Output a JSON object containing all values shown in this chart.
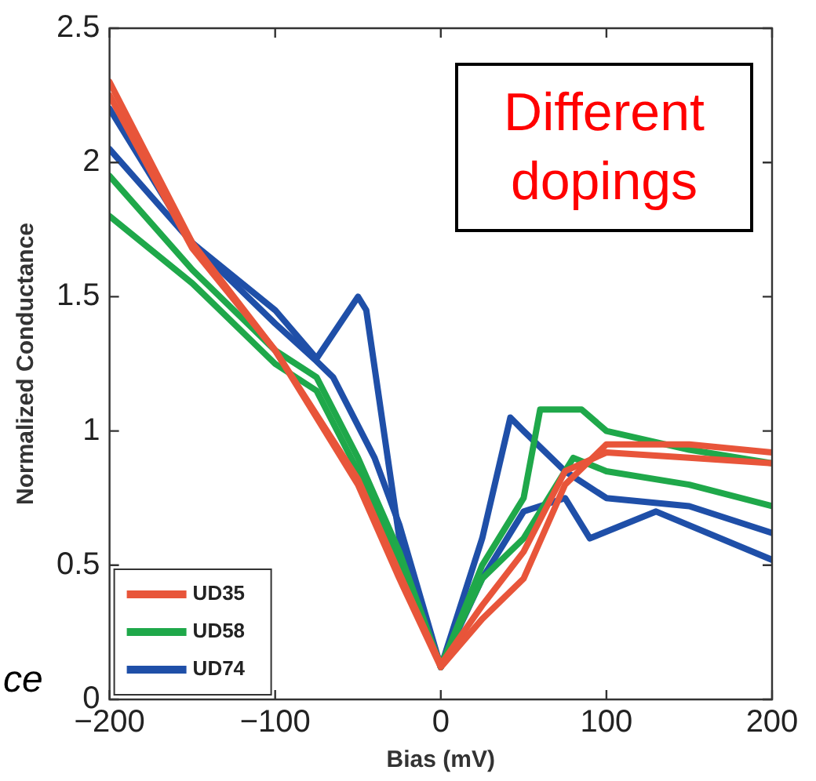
{
  "chart_data": {
    "type": "line",
    "xlabel": "Bias (mV)",
    "ylabel": "Normalized Conductance",
    "annotations": [
      "Different dopings",
      "ce"
    ],
    "xlim": [
      -200,
      200
    ],
    "xticks": [
      {
        "value": -200,
        "label": "−200"
      },
      {
        "value": -100,
        "label": "−100"
      },
      0,
      100,
      200
    ],
    "ylim": [
      0,
      2.5
    ],
    "yticks": [
      0,
      0.5,
      1,
      1.5,
      2,
      2.5
    ],
    "grid": false,
    "legend": "bottom left",
    "marker": "none",
    "line_style": "solid",
    "series": [
      {
        "name": "UD35",
        "color": "#e8553a",
        "x": [
          -200,
          -150,
          -100,
          -50,
          -25,
          0,
          25,
          50,
          75,
          100,
          150,
          200
        ],
        "values": [
          2.3,
          1.7,
          1.3,
          0.8,
          0.45,
          0.12,
          0.3,
          0.45,
          0.8,
          0.95,
          0.95,
          0.92
        ]
      },
      {
        "color": "#e8553a",
        "x": [
          -200,
          -150,
          -100,
          -50,
          -25,
          0,
          25,
          50,
          75,
          100,
          150,
          200
        ],
        "values": [
          2.25,
          1.68,
          1.3,
          0.82,
          0.47,
          0.13,
          0.35,
          0.55,
          0.85,
          0.92,
          0.9,
          0.88
        ]
      },
      {
        "name": "UD58",
        "color": "#1fa84a",
        "x": [
          -200,
          -150,
          -100,
          -75,
          -50,
          -25,
          0,
          25,
          50,
          60,
          85,
          100,
          150,
          200
        ],
        "values": [
          1.95,
          1.6,
          1.3,
          1.2,
          0.9,
          0.55,
          0.12,
          0.5,
          0.75,
          1.08,
          1.08,
          1.0,
          0.93,
          0.88
        ]
      },
      {
        "color": "#1fa84a",
        "x": [
          -200,
          -150,
          -100,
          -75,
          -50,
          -25,
          0,
          25,
          50,
          80,
          100,
          150,
          200
        ],
        "values": [
          1.8,
          1.55,
          1.25,
          1.15,
          0.85,
          0.5,
          0.13,
          0.45,
          0.6,
          0.9,
          0.85,
          0.8,
          0.72
        ]
      },
      {
        "name": "UD74",
        "color": "#1f4fa8",
        "x": [
          -200,
          -150,
          -100,
          -75,
          -50,
          -45,
          -25,
          0,
          25,
          42,
          50,
          75,
          100,
          150,
          200
        ],
        "values": [
          2.2,
          1.7,
          1.45,
          1.27,
          1.5,
          1.45,
          0.6,
          0.12,
          0.6,
          1.05,
          1.0,
          0.85,
          0.75,
          0.72,
          0.62
        ]
      },
      {
        "color": "#1f4fa8",
        "x": [
          -200,
          -150,
          -100,
          -75,
          -65,
          -40,
          -25,
          0,
          25,
          50,
          75,
          90,
          130,
          200
        ],
        "values": [
          2.05,
          1.7,
          1.4,
          1.26,
          1.2,
          0.9,
          0.65,
          0.12,
          0.45,
          0.7,
          0.75,
          0.6,
          0.7,
          0.52
        ]
      }
    ]
  }
}
